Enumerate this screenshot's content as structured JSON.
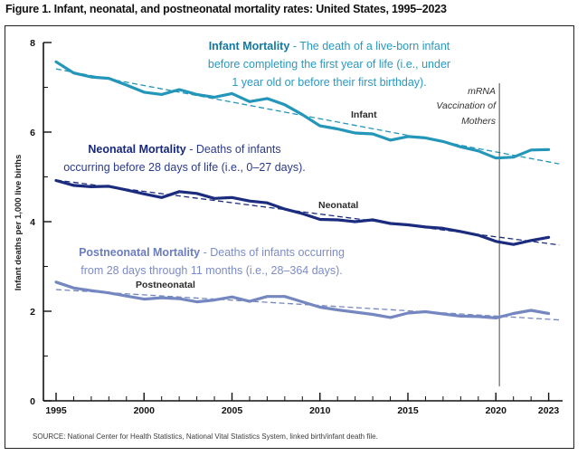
{
  "title": "Figure 1. Infant, neonatal, and postneonatal mortality rates: United States, 1995–2023",
  "source": "SOURCE: National Center for Health Statistics, National Vital Statistics System, linked birth/infant death file.",
  "annotations": {
    "infant": {
      "heading": "Infant Mortality",
      "body": "-  The death of a live-born infant\nbefore completing the first year of life (i.e., under\n1 year old or before their first birthday)."
    },
    "neonatal": {
      "heading": "Neonatal Mortality",
      "body": "-  Deaths of infants\noccurring before 28 days of life (i.e., 0–27 days)."
    },
    "postneonatal": {
      "heading": "Postneonatal Mortality",
      "body": "-  Deaths of infants occurring\nfrom 28 days through 11 months (i.e., 28–364 days)."
    },
    "mrna_event": "mRNA\nVaccination of\nMothers"
  },
  "series_labels": {
    "infant": "Infant",
    "neonatal": "Neonatal",
    "postneonatal": "Postneonatal"
  },
  "chart_data": {
    "type": "line",
    "title": "Infant, neonatal, and postneonatal mortality rates, United States, 1995-2023",
    "ylabel": "Infant deaths per 1,000 live births",
    "xlabel": "",
    "ylim": [
      0,
      8
    ],
    "xlim": [
      1995,
      2023
    ],
    "grid": false,
    "yticks_major": [
      0,
      2,
      4,
      6,
      8
    ],
    "yticks_minor": [
      1,
      3,
      5,
      7
    ],
    "xticks_major": [
      1995,
      2000,
      2005,
      2010,
      2015,
      2020,
      2023
    ],
    "x": [
      1995,
      1996,
      1997,
      1998,
      1999,
      2000,
      2001,
      2002,
      2003,
      2004,
      2005,
      2006,
      2007,
      2008,
      2009,
      2010,
      2011,
      2012,
      2013,
      2014,
      2015,
      2016,
      2017,
      2018,
      2019,
      2020,
      2021,
      2022,
      2023
    ],
    "series": [
      {
        "name": "Infant",
        "color": "#2396b9",
        "values": [
          7.57,
          7.32,
          7.23,
          7.2,
          7.05,
          6.89,
          6.84,
          6.95,
          6.84,
          6.78,
          6.86,
          6.68,
          6.75,
          6.61,
          6.39,
          6.14,
          6.07,
          5.98,
          5.96,
          5.82,
          5.9,
          5.87,
          5.79,
          5.67,
          5.58,
          5.42,
          5.44,
          5.6,
          5.61
        ]
      },
      {
        "name": "Neonatal",
        "color": "#1b2c7e",
        "values": [
          4.92,
          4.81,
          4.78,
          4.79,
          4.71,
          4.62,
          4.54,
          4.67,
          4.63,
          4.52,
          4.54,
          4.46,
          4.42,
          4.28,
          4.18,
          4.05,
          4.04,
          4.0,
          4.04,
          3.96,
          3.93,
          3.88,
          3.85,
          3.78,
          3.7,
          3.56,
          3.49,
          3.58,
          3.65
        ]
      },
      {
        "name": "Postneonatal",
        "color": "#7587c1",
        "values": [
          2.65,
          2.52,
          2.46,
          2.41,
          2.34,
          2.27,
          2.3,
          2.28,
          2.21,
          2.25,
          2.32,
          2.22,
          2.33,
          2.33,
          2.21,
          2.09,
          2.03,
          1.98,
          1.93,
          1.86,
          1.96,
          1.99,
          1.94,
          1.89,
          1.88,
          1.85,
          1.95,
          2.02,
          1.95
        ]
      }
    ],
    "trendlines": "linear regression per series, dashed, same color as series",
    "event_line": {
      "x": 2020.2,
      "label": "mRNA Vaccination of Mothers",
      "color": "#4a4a4a"
    }
  }
}
